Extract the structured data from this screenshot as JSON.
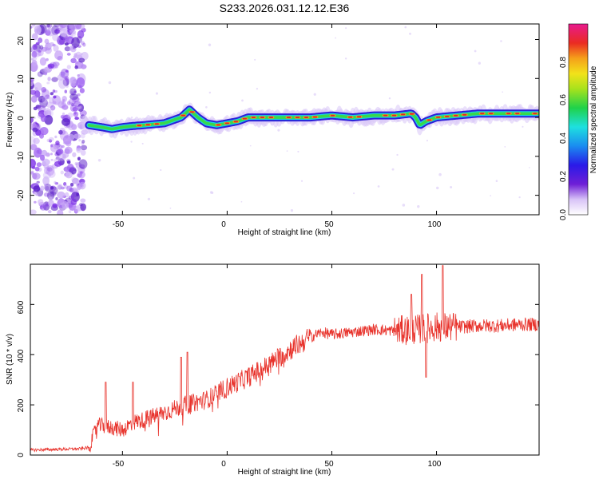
{
  "chart_data": [
    {
      "type": "heatmap",
      "title": "S233.2026.031.12.12.E36",
      "xlabel": "Height of straight line (km)",
      "ylabel": "Frequency (Hz)",
      "xlim": [
        -94,
        149
      ],
      "ylim": [
        -25,
        24
      ],
      "xticks": [
        "-50",
        "0",
        "50",
        "100"
      ],
      "yticks": [
        "-20",
        "-10",
        "0",
        "10",
        "20"
      ],
      "colorbar": {
        "label": "Normalized spectral amplitude",
        "range": [
          0,
          1
        ],
        "ticks": [
          "0.0",
          "0.2",
          "0.4",
          "0.6",
          "0.8"
        ]
      },
      "ridge": {
        "description_points": [
          [
            -66,
            -2
          ],
          [
            -60,
            -2.5
          ],
          [
            -55,
            -3
          ],
          [
            -50,
            -2.5
          ],
          [
            -45,
            -2.2
          ],
          [
            -40,
            -2
          ],
          [
            -30,
            -1.5
          ],
          [
            -22,
            0
          ],
          [
            -18,
            2
          ],
          [
            -14,
            0
          ],
          [
            -10,
            -1.5
          ],
          [
            -5,
            -2
          ],
          [
            0,
            -1.5
          ],
          [
            5,
            -1
          ],
          [
            10,
            0
          ],
          [
            20,
            0
          ],
          [
            30,
            0
          ],
          [
            40,
            0
          ],
          [
            50,
            0.5
          ],
          [
            60,
            0
          ],
          [
            70,
            0.5
          ],
          [
            80,
            0.5
          ],
          [
            88,
            1
          ],
          [
            90,
            0
          ],
          [
            92,
            -2
          ],
          [
            95,
            -1
          ],
          [
            100,
            0
          ],
          [
            110,
            0.5
          ],
          [
            120,
            1
          ],
          [
            130,
            1
          ],
          [
            140,
            1
          ],
          [
            149,
            1
          ]
        ]
      }
    },
    {
      "type": "line",
      "xlabel": "Height of straight line (km)",
      "ylabel": "SNR (10 * v/v)",
      "xlim": [
        -94,
        149
      ],
      "ylim": [
        0,
        760
      ],
      "xticks": [
        "-50",
        "0",
        "50",
        "100"
      ],
      "yticks": [
        "0",
        "200",
        "400",
        "600"
      ],
      "series": [
        {
          "name": "SNR",
          "color": "#e8332c",
          "trend": [
            [
              -94,
              20
            ],
            [
              -70,
              25
            ],
            [
              -66,
              30
            ],
            [
              -62,
              120
            ],
            [
              -55,
              110
            ],
            [
              -50,
              100
            ],
            [
              -45,
              130
            ],
            [
              -40,
              140
            ],
            [
              -30,
              170
            ],
            [
              -20,
              200
            ],
            [
              -10,
              220
            ],
            [
              0,
              270
            ],
            [
              10,
              310
            ],
            [
              20,
              360
            ],
            [
              30,
              420
            ],
            [
              40,
              470
            ],
            [
              45,
              490
            ],
            [
              50,
              480
            ],
            [
              60,
              490
            ],
            [
              70,
              500
            ],
            [
              80,
              495
            ],
            [
              90,
              500
            ],
            [
              100,
              510
            ],
            [
              110,
              510
            ],
            [
              120,
              515
            ],
            [
              130,
              515
            ],
            [
              140,
              520
            ],
            [
              149,
              520
            ]
          ],
          "peaks": [
            [
              -58,
              290
            ],
            [
              -45,
              290
            ],
            [
              -22,
              390
            ],
            [
              -19,
              410
            ],
            [
              45,
              490
            ],
            [
              88,
              640
            ],
            [
              93,
              720
            ],
            [
              103,
              755
            ],
            [
              95,
              310
            ]
          ]
        }
      ]
    }
  ]
}
